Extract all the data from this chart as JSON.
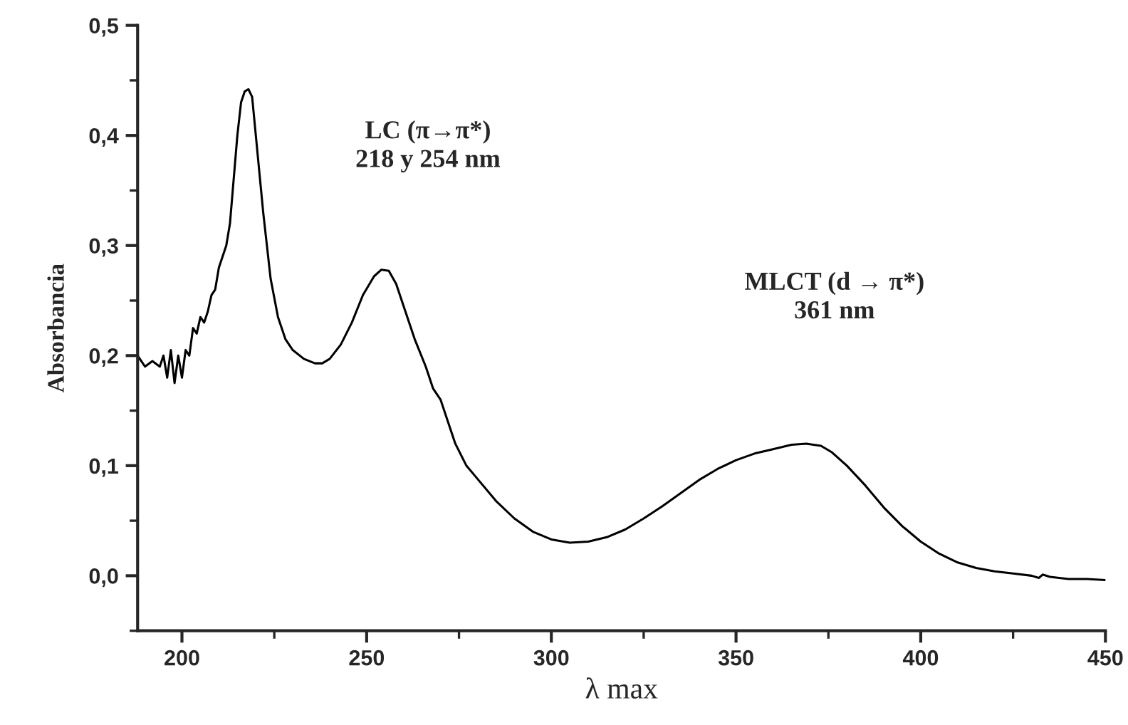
{
  "chart_data": {
    "type": "line",
    "xlabel": "λ max",
    "ylabel": "Absorbancia",
    "annotations": [
      "LC (π→π*)\n218 y 254 nm",
      "MLCT (d → π*)\n361 nm"
    ],
    "xlim": [
      188,
      450
    ],
    "xticks": [
      200,
      250,
      300,
      350,
      400,
      450
    ],
    "ylim": [
      -0.05,
      0.5
    ],
    "yticks": [
      {
        "value": 0.0,
        "label": "0,0"
      },
      {
        "value": 0.1,
        "label": "0,1"
      },
      {
        "value": 0.2,
        "label": "0,2"
      },
      {
        "value": 0.3,
        "label": "0,3"
      },
      {
        "value": 0.4,
        "label": "0,4"
      },
      {
        "value": 0.5,
        "label": "0,5"
      }
    ],
    "grid": false,
    "legend": false,
    "marker": "none",
    "line_style": "solid",
    "series": [
      {
        "color": "#000000",
        "x": [
          188,
          190,
          192,
          194,
          195,
          196,
          197,
          198,
          199,
          200,
          201,
          202,
          203,
          204,
          205,
          206,
          207,
          208,
          209,
          210,
          212,
          213,
          214,
          215,
          216,
          217,
          218,
          219,
          220,
          222,
          224,
          226,
          228,
          230,
          233,
          236,
          238,
          240,
          243,
          246,
          249,
          252,
          254,
          256,
          258,
          260,
          263,
          266,
          268,
          270,
          272,
          274,
          277,
          280,
          285,
          290,
          295,
          300,
          305,
          310,
          315,
          320,
          325,
          330,
          335,
          340,
          345,
          350,
          355,
          360,
          365,
          369,
          373,
          376,
          380,
          385,
          390,
          395,
          400,
          405,
          410,
          415,
          420,
          425,
          430,
          432,
          433,
          435,
          440,
          445,
          450
        ],
        "values": [
          0.2,
          0.19,
          0.195,
          0.19,
          0.2,
          0.18,
          0.205,
          0.175,
          0.2,
          0.18,
          0.205,
          0.2,
          0.225,
          0.22,
          0.235,
          0.23,
          0.24,
          0.255,
          0.26,
          0.28,
          0.3,
          0.32,
          0.36,
          0.4,
          0.43,
          0.44,
          0.442,
          0.435,
          0.4,
          0.33,
          0.27,
          0.235,
          0.215,
          0.205,
          0.197,
          0.193,
          0.193,
          0.197,
          0.21,
          0.23,
          0.255,
          0.272,
          0.278,
          0.277,
          0.265,
          0.245,
          0.215,
          0.19,
          0.17,
          0.16,
          0.14,
          0.12,
          0.1,
          0.088,
          0.068,
          0.052,
          0.04,
          0.033,
          0.03,
          0.031,
          0.035,
          0.042,
          0.052,
          0.063,
          0.075,
          0.087,
          0.097,
          0.105,
          0.111,
          0.115,
          0.119,
          0.12,
          0.118,
          0.112,
          0.1,
          0.082,
          0.062,
          0.045,
          0.031,
          0.02,
          0.012,
          0.007,
          0.004,
          0.002,
          0.0,
          -0.002,
          0.001,
          -0.001,
          -0.003,
          -0.003,
          -0.004
        ]
      }
    ]
  }
}
